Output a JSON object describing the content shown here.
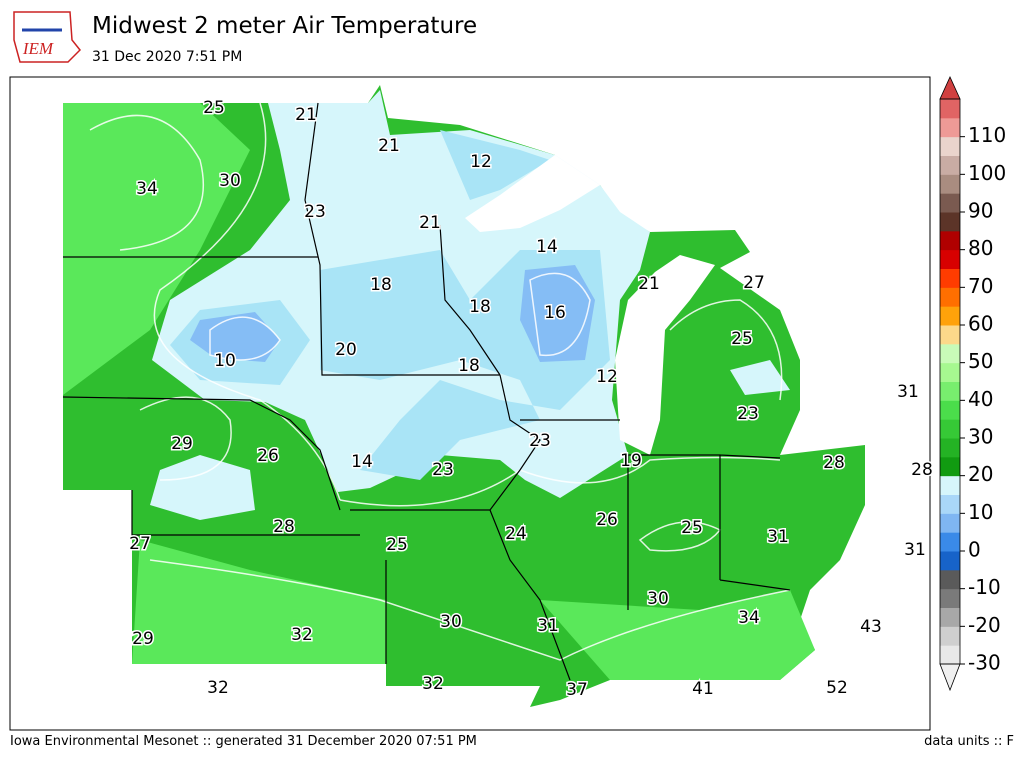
{
  "header": {
    "logo": "IEM",
    "title": "Midwest 2 meter Air Temperature",
    "subtitle": "31 Dec 2020 7:51 PM"
  },
  "stations": [
    25,
    21,
    21,
    12,
    34,
    30,
    23,
    21,
    14,
    18,
    18,
    21,
    27,
    16,
    25,
    10,
    20,
    18,
    12,
    31,
    23,
    29,
    26,
    23,
    14,
    23,
    19,
    28,
    28,
    26,
    25,
    28,
    24,
    27,
    25,
    31,
    31,
    30,
    34,
    30,
    31,
    32,
    43,
    29,
    32,
    32,
    37,
    41,
    52
  ],
  "colorbar": {
    "lim": [
      -30,
      120
    ],
    "ticks": [
      -30,
      -20,
      -10,
      0,
      10,
      20,
      30,
      40,
      50,
      60,
      70,
      80,
      90,
      100,
      110
    ],
    "colors": [
      "#e8e8e8",
      "#cfcfcf",
      "#a8a8a8",
      "#7a7a7a",
      "#5a5a5a",
      "#1763c9",
      "#3a8ae8",
      "#7fb6f2",
      "#a9d7f8",
      "#d6f6fb",
      "#119b11",
      "#24b324",
      "#36c936",
      "#4bdd4b",
      "#78ee6e",
      "#a6f890",
      "#c8fbb8",
      "#fcd98a",
      "#ffa20a",
      "#ff6f00",
      "#ff3c00",
      "#d80000",
      "#b00000",
      "#5c3428",
      "#7a5a50",
      "#a98c80",
      "#c9aca4",
      "#ead4cc",
      "#ee9a96",
      "#e06464"
    ],
    "under": "#f0f0f0",
    "over": "#d04040"
  },
  "footer": {
    "left": "Iowa Environmental Mesonet :: generated 31 December 2020 07:51 PM",
    "right": "data units :: F"
  }
}
